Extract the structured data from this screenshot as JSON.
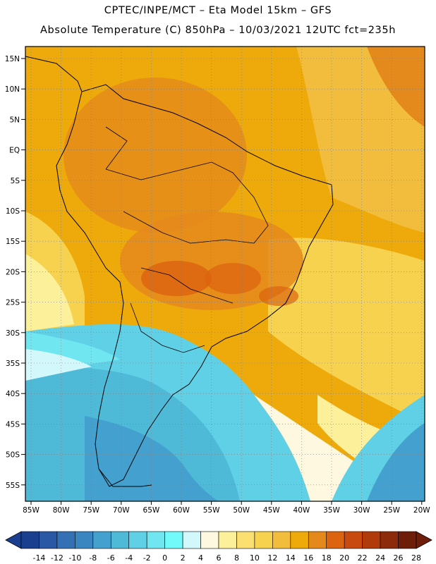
{
  "titles": {
    "line1": "CPTEC/INPE/MCT –  Eta Model 15km – GFS",
    "line2": "Absolute Temperature (C) 850hPa – 10/03/2021 12UTC fct=235h"
  },
  "map": {
    "lat_labels": [
      "15N",
      "10N",
      "5N",
      "EQ",
      "5S",
      "10S",
      "15S",
      "20S",
      "25S",
      "30S",
      "35S",
      "40S",
      "45S",
      "50S",
      "55S"
    ],
    "lon_labels": [
      "85W",
      "80W",
      "75W",
      "70W",
      "65W",
      "60W",
      "55W",
      "50W",
      "45W",
      "40W",
      "35W",
      "30W",
      "25W",
      "20W"
    ],
    "gridlines": "dotted",
    "region": "South America"
  },
  "colorbar": {
    "labels": [
      "-14",
      "-12",
      "-10",
      "-8",
      "-6",
      "-4",
      "-2",
      "0",
      "2",
      "4",
      "6",
      "8",
      "10",
      "12",
      "14",
      "16",
      "18",
      "20",
      "22",
      "24",
      "26",
      "28"
    ],
    "colors": [
      "#1b3f8f",
      "#2a58a5",
      "#3470b4",
      "#3a86c1",
      "#44a0ce",
      "#4fb9d8",
      "#5fd0e6",
      "#6fe6f0",
      "#72fafa",
      "#d2f8fb",
      "#fff8e0",
      "#fdf09a",
      "#fbe071",
      "#f7d24e",
      "#f2bd3c",
      "#eeaa0a",
      "#e48a1c",
      "#dc6410",
      "#c94a0e",
      "#b03a0a",
      "#8c2a0a",
      "#6e1e08"
    ]
  }
}
